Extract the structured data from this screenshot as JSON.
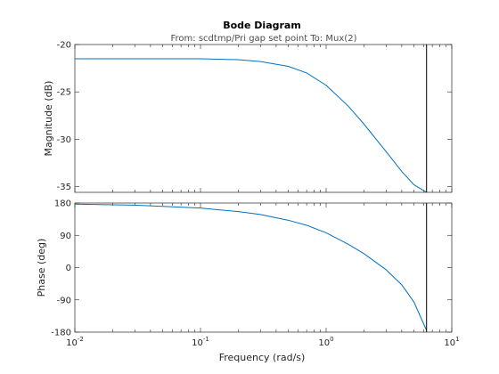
{
  "title": "Bode Diagram",
  "subtitle": "From: scdtmp/Pri gap set point  To: Mux(2)",
  "xlabel": "Frequency  (rad/s)",
  "colors": {
    "line": "#0072bd",
    "frame": "#262626",
    "marker": "#000000"
  },
  "chart_data": [
    {
      "type": "line",
      "panel": "magnitude",
      "ylabel": "Magnitude (dB)",
      "xscale": "log",
      "xlim": [
        0.01,
        10
      ],
      "ylim": [
        -35.6,
        -20
      ],
      "yticks": [
        -20,
        -25,
        -30,
        -35
      ],
      "ytick_labels": [
        "-20",
        "-25",
        "-30",
        "-35"
      ],
      "grid": false,
      "x": [
        0.01,
        0.03,
        0.1,
        0.2,
        0.3,
        0.5,
        0.7,
        1.0,
        1.5,
        2.0,
        3.0,
        4.0,
        5.0,
        6.3
      ],
      "y": [
        -21.5,
        -21.5,
        -21.5,
        -21.6,
        -21.8,
        -22.3,
        -23.0,
        -24.3,
        -26.5,
        -28.4,
        -31.3,
        -33.4,
        -34.8,
        -35.6
      ],
      "vline_x": 6.3
    },
    {
      "type": "line",
      "panel": "phase",
      "ylabel": "Phase (deg)",
      "xscale": "log",
      "xlim": [
        0.01,
        10
      ],
      "ylim": [
        -180,
        180
      ],
      "yticks": [
        180,
        90,
        0,
        -90,
        -180
      ],
      "ytick_labels": [
        "180",
        "90",
        "0",
        "-90",
        "-180"
      ],
      "xticks": [
        0.01,
        0.1,
        1,
        10
      ],
      "xtick_labels": [
        {
          "base": "10",
          "exp": "-2"
        },
        {
          "base": "10",
          "exp": "-1"
        },
        {
          "base": "10",
          "exp": "0"
        },
        {
          "base": "10",
          "exp": "1"
        }
      ],
      "grid": false,
      "x": [
        0.01,
        0.03,
        0.1,
        0.2,
        0.3,
        0.5,
        0.7,
        1.0,
        1.5,
        2.0,
        3.0,
        4.0,
        5.0,
        6.3
      ],
      "y": [
        177,
        174,
        166,
        156,
        148,
        132,
        118,
        97,
        65,
        39,
        -6,
        -48,
        -96,
        -175
      ],
      "vline_x": 6.3
    }
  ]
}
